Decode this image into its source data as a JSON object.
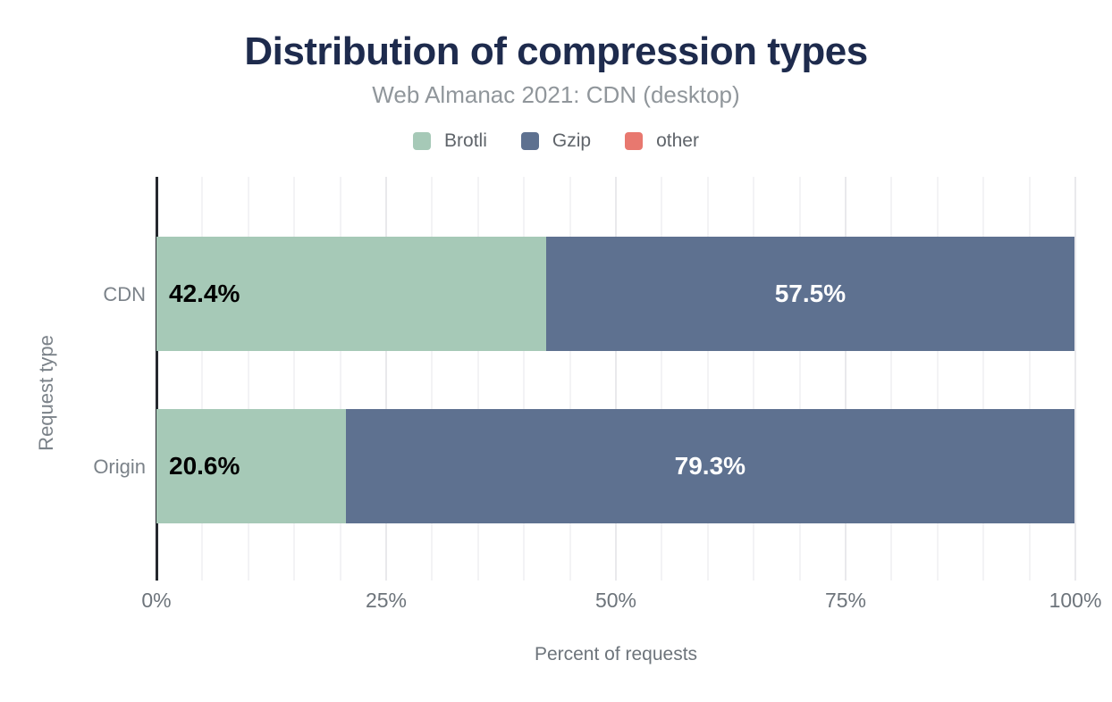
{
  "title": "Distribution of compression types",
  "subtitle": "Web Almanac 2021: CDN (desktop)",
  "legend": [
    {
      "label": "Brotli",
      "color": "#a6c9b7"
    },
    {
      "label": "Gzip",
      "color": "#5e7190"
    },
    {
      "label": "other",
      "color": "#e8786f"
    }
  ],
  "colors": {
    "title": "#1e2b4d",
    "subtitle": "#90969b",
    "axis_line": "#25282e",
    "gridline_minor": "#f3f3f5",
    "gridline_major": "#e9e9ec",
    "label_on_green": "#000000",
    "label_on_blue": "#ffffff"
  },
  "chart_data": {
    "type": "bar",
    "orientation": "horizontal",
    "stacked": true,
    "categories": [
      "CDN",
      "Origin"
    ],
    "series": [
      {
        "name": "Brotli",
        "values": [
          42.4,
          20.6
        ],
        "color": "#a6c9b7"
      },
      {
        "name": "Gzip",
        "values": [
          57.5,
          79.3
        ],
        "color": "#5e7190"
      },
      {
        "name": "other",
        "values": [
          0.1,
          0.1
        ],
        "color": "#e8786f"
      }
    ],
    "bar_labels": {
      "CDN": [
        "42.4%",
        "57.5%"
      ],
      "Origin": [
        "20.6%",
        "79.3%"
      ]
    },
    "xlabel": "Percent of requests",
    "ylabel": "Request type",
    "xlim": [
      0,
      100
    ],
    "xticks": [
      "0%",
      "25%",
      "50%",
      "75%",
      "100%"
    ],
    "xtick_positions": [
      0,
      25,
      50,
      75,
      100
    ],
    "grid": "vertical lines every 5%",
    "legend_position": "top"
  }
}
